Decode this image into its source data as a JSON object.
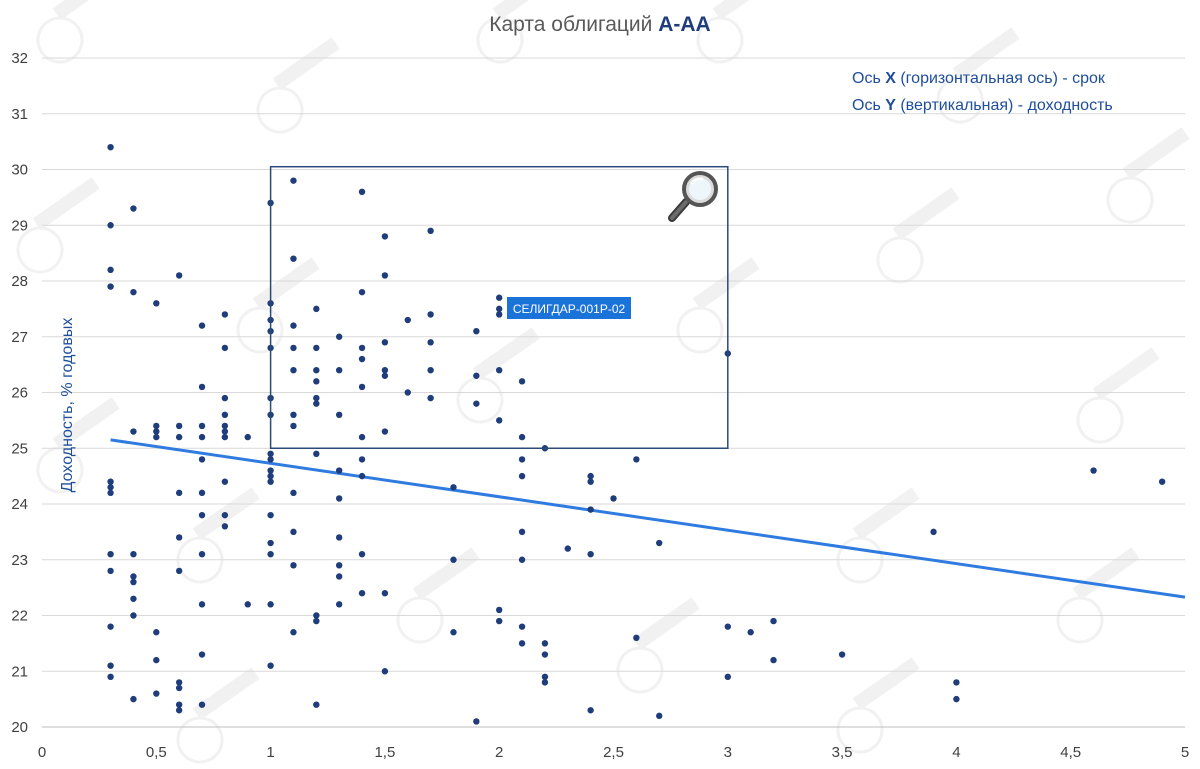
{
  "chart_data": {
    "type": "scatter",
    "title_prefix": "Карта облигаций ",
    "title_highlight": "А-АА",
    "xlabel": "",
    "ylabel": "Доходность, % годовых",
    "xlim": [
      0,
      5
    ],
    "ylim": [
      20,
      32
    ],
    "x_ticks": [
      "0",
      "0,5",
      "1",
      "1,5",
      "2",
      "2,5",
      "3",
      "3,5",
      "4",
      "4,5",
      "5"
    ],
    "y_ticks": [
      "20",
      "21",
      "22",
      "23",
      "24",
      "25",
      "26",
      "27",
      "28",
      "29",
      "30",
      "31",
      "32"
    ],
    "grid": "horizontal",
    "legend_note": [
      {
        "pre": "Ось ",
        "bold": "X",
        "post": " (горизонтальная ось) - срок"
      },
      {
        "pre": "Ось ",
        "bold": "Y",
        "post": " (вертикальная) - доходность"
      }
    ],
    "zoom_box": {
      "x0": 1.0,
      "x1": 3.0,
      "y0": 25.0,
      "y1": 30.05
    },
    "highlight_label": {
      "text": "СЕЛИГДАР-001Р-02",
      "x": 2.0,
      "y": 27.5
    },
    "trendline": {
      "x": [
        0.3,
        5.0
      ],
      "y": [
        25.15,
        22.33
      ]
    },
    "colors": {
      "points": "#1f3d7a",
      "trend": "#2f7be0",
      "grid": "#d9d9d9",
      "box": "#2b4a7a",
      "callout": "#1a73d9"
    },
    "points": [
      [
        0.3,
        30.4
      ],
      [
        0.3,
        29.0
      ],
      [
        0.3,
        28.2
      ],
      [
        0.3,
        27.9
      ],
      [
        0.3,
        24.4
      ],
      [
        0.3,
        24.3
      ],
      [
        0.3,
        24.2
      ],
      [
        0.3,
        23.1
      ],
      [
        0.3,
        22.8
      ],
      [
        0.3,
        21.8
      ],
      [
        0.3,
        21.1
      ],
      [
        0.3,
        20.9
      ],
      [
        0.4,
        29.3
      ],
      [
        0.4,
        27.8
      ],
      [
        0.4,
        25.3
      ],
      [
        0.4,
        23.1
      ],
      [
        0.4,
        22.7
      ],
      [
        0.4,
        22.6
      ],
      [
        0.4,
        22.3
      ],
      [
        0.4,
        22.0
      ],
      [
        0.4,
        20.5
      ],
      [
        0.5,
        27.6
      ],
      [
        0.5,
        25.4
      ],
      [
        0.5,
        25.3
      ],
      [
        0.5,
        25.2
      ],
      [
        0.5,
        21.7
      ],
      [
        0.5,
        21.2
      ],
      [
        0.5,
        20.6
      ],
      [
        0.6,
        28.1
      ],
      [
        0.6,
        25.4
      ],
      [
        0.6,
        25.2
      ],
      [
        0.6,
        24.2
      ],
      [
        0.6,
        23.4
      ],
      [
        0.6,
        22.8
      ],
      [
        0.6,
        20.8
      ],
      [
        0.6,
        20.7
      ],
      [
        0.6,
        20.4
      ],
      [
        0.6,
        20.3
      ],
      [
        0.7,
        27.2
      ],
      [
        0.7,
        26.1
      ],
      [
        0.7,
        25.4
      ],
      [
        0.7,
        25.2
      ],
      [
        0.7,
        24.8
      ],
      [
        0.7,
        24.2
      ],
      [
        0.7,
        23.8
      ],
      [
        0.7,
        23.1
      ],
      [
        0.7,
        22.2
      ],
      [
        0.7,
        21.3
      ],
      [
        0.7,
        20.4
      ],
      [
        0.8,
        27.4
      ],
      [
        0.8,
        26.8
      ],
      [
        0.8,
        25.9
      ],
      [
        0.8,
        25.6
      ],
      [
        0.8,
        25.4
      ],
      [
        0.8,
        25.3
      ],
      [
        0.8,
        25.2
      ],
      [
        0.8,
        24.4
      ],
      [
        0.8,
        23.8
      ],
      [
        0.8,
        23.6
      ],
      [
        0.9,
        25.2
      ],
      [
        0.9,
        22.2
      ],
      [
        1.0,
        29.4
      ],
      [
        1.0,
        27.6
      ],
      [
        1.0,
        27.3
      ],
      [
        1.0,
        27.1
      ],
      [
        1.0,
        26.8
      ],
      [
        1.0,
        25.9
      ],
      [
        1.0,
        25.6
      ],
      [
        1.0,
        24.9
      ],
      [
        1.0,
        24.8
      ],
      [
        1.0,
        24.6
      ],
      [
        1.0,
        24.5
      ],
      [
        1.0,
        24.4
      ],
      [
        1.0,
        23.8
      ],
      [
        1.0,
        23.3
      ],
      [
        1.0,
        23.1
      ],
      [
        1.0,
        22.2
      ],
      [
        1.0,
        21.1
      ],
      [
        1.1,
        29.8
      ],
      [
        1.1,
        28.4
      ],
      [
        1.1,
        27.2
      ],
      [
        1.1,
        26.8
      ],
      [
        1.1,
        26.4
      ],
      [
        1.1,
        25.6
      ],
      [
        1.1,
        25.4
      ],
      [
        1.1,
        24.2
      ],
      [
        1.1,
        23.5
      ],
      [
        1.1,
        22.9
      ],
      [
        1.1,
        21.7
      ],
      [
        1.2,
        27.5
      ],
      [
        1.2,
        26.8
      ],
      [
        1.2,
        26.4
      ],
      [
        1.2,
        26.2
      ],
      [
        1.2,
        25.9
      ],
      [
        1.2,
        25.8
      ],
      [
        1.2,
        24.9
      ],
      [
        1.2,
        22.0
      ],
      [
        1.2,
        21.9
      ],
      [
        1.2,
        20.4
      ],
      [
        1.3,
        27.0
      ],
      [
        1.3,
        26.4
      ],
      [
        1.3,
        25.6
      ],
      [
        1.3,
        24.6
      ],
      [
        1.3,
        24.1
      ],
      [
        1.3,
        23.4
      ],
      [
        1.3,
        22.9
      ],
      [
        1.3,
        22.7
      ],
      [
        1.3,
        22.2
      ],
      [
        1.4,
        29.6
      ],
      [
        1.4,
        27.8
      ],
      [
        1.4,
        26.8
      ],
      [
        1.4,
        26.6
      ],
      [
        1.4,
        26.1
      ],
      [
        1.4,
        25.2
      ],
      [
        1.4,
        24.8
      ],
      [
        1.4,
        24.5
      ],
      [
        1.4,
        23.1
      ],
      [
        1.4,
        22.4
      ],
      [
        1.5,
        28.8
      ],
      [
        1.5,
        28.1
      ],
      [
        1.5,
        26.9
      ],
      [
        1.5,
        26.4
      ],
      [
        1.5,
        26.3
      ],
      [
        1.5,
        25.3
      ],
      [
        1.5,
        22.4
      ],
      [
        1.5,
        21.0
      ],
      [
        1.6,
        27.3
      ],
      [
        1.6,
        26.0
      ],
      [
        1.7,
        28.9
      ],
      [
        1.7,
        27.4
      ],
      [
        1.7,
        26.9
      ],
      [
        1.7,
        26.4
      ],
      [
        1.7,
        25.9
      ],
      [
        1.8,
        24.3
      ],
      [
        1.8,
        23.0
      ],
      [
        1.8,
        21.7
      ],
      [
        1.9,
        27.1
      ],
      [
        1.9,
        26.3
      ],
      [
        1.9,
        25.8
      ],
      [
        1.9,
        20.1
      ],
      [
        2.0,
        27.7
      ],
      [
        2.0,
        27.5
      ],
      [
        2.0,
        27.4
      ],
      [
        2.0,
        26.4
      ],
      [
        2.0,
        25.5
      ],
      [
        2.0,
        22.1
      ],
      [
        2.0,
        21.9
      ],
      [
        2.1,
        26.2
      ],
      [
        2.1,
        25.2
      ],
      [
        2.1,
        24.8
      ],
      [
        2.1,
        24.5
      ],
      [
        2.1,
        23.5
      ],
      [
        2.1,
        23.0
      ],
      [
        2.1,
        21.8
      ],
      [
        2.1,
        21.5
      ],
      [
        2.2,
        25.0
      ],
      [
        2.2,
        21.5
      ],
      [
        2.2,
        21.3
      ],
      [
        2.2,
        20.9
      ],
      [
        2.2,
        20.8
      ],
      [
        2.3,
        23.2
      ],
      [
        2.4,
        24.5
      ],
      [
        2.4,
        24.4
      ],
      [
        2.4,
        23.9
      ],
      [
        2.4,
        23.1
      ],
      [
        2.4,
        20.3
      ],
      [
        2.5,
        24.1
      ],
      [
        2.6,
        24.8
      ],
      [
        2.6,
        21.6
      ],
      [
        2.7,
        23.3
      ],
      [
        2.7,
        20.2
      ],
      [
        3.0,
        26.7
      ],
      [
        3.0,
        21.8
      ],
      [
        3.0,
        20.9
      ],
      [
        3.1,
        21.7
      ],
      [
        3.2,
        21.9
      ],
      [
        3.2,
        21.2
      ],
      [
        3.5,
        21.3
      ],
      [
        3.9,
        23.5
      ],
      [
        4.0,
        20.8
      ],
      [
        4.0,
        20.5
      ],
      [
        4.6,
        24.6
      ],
      [
        4.9,
        24.4
      ]
    ]
  }
}
